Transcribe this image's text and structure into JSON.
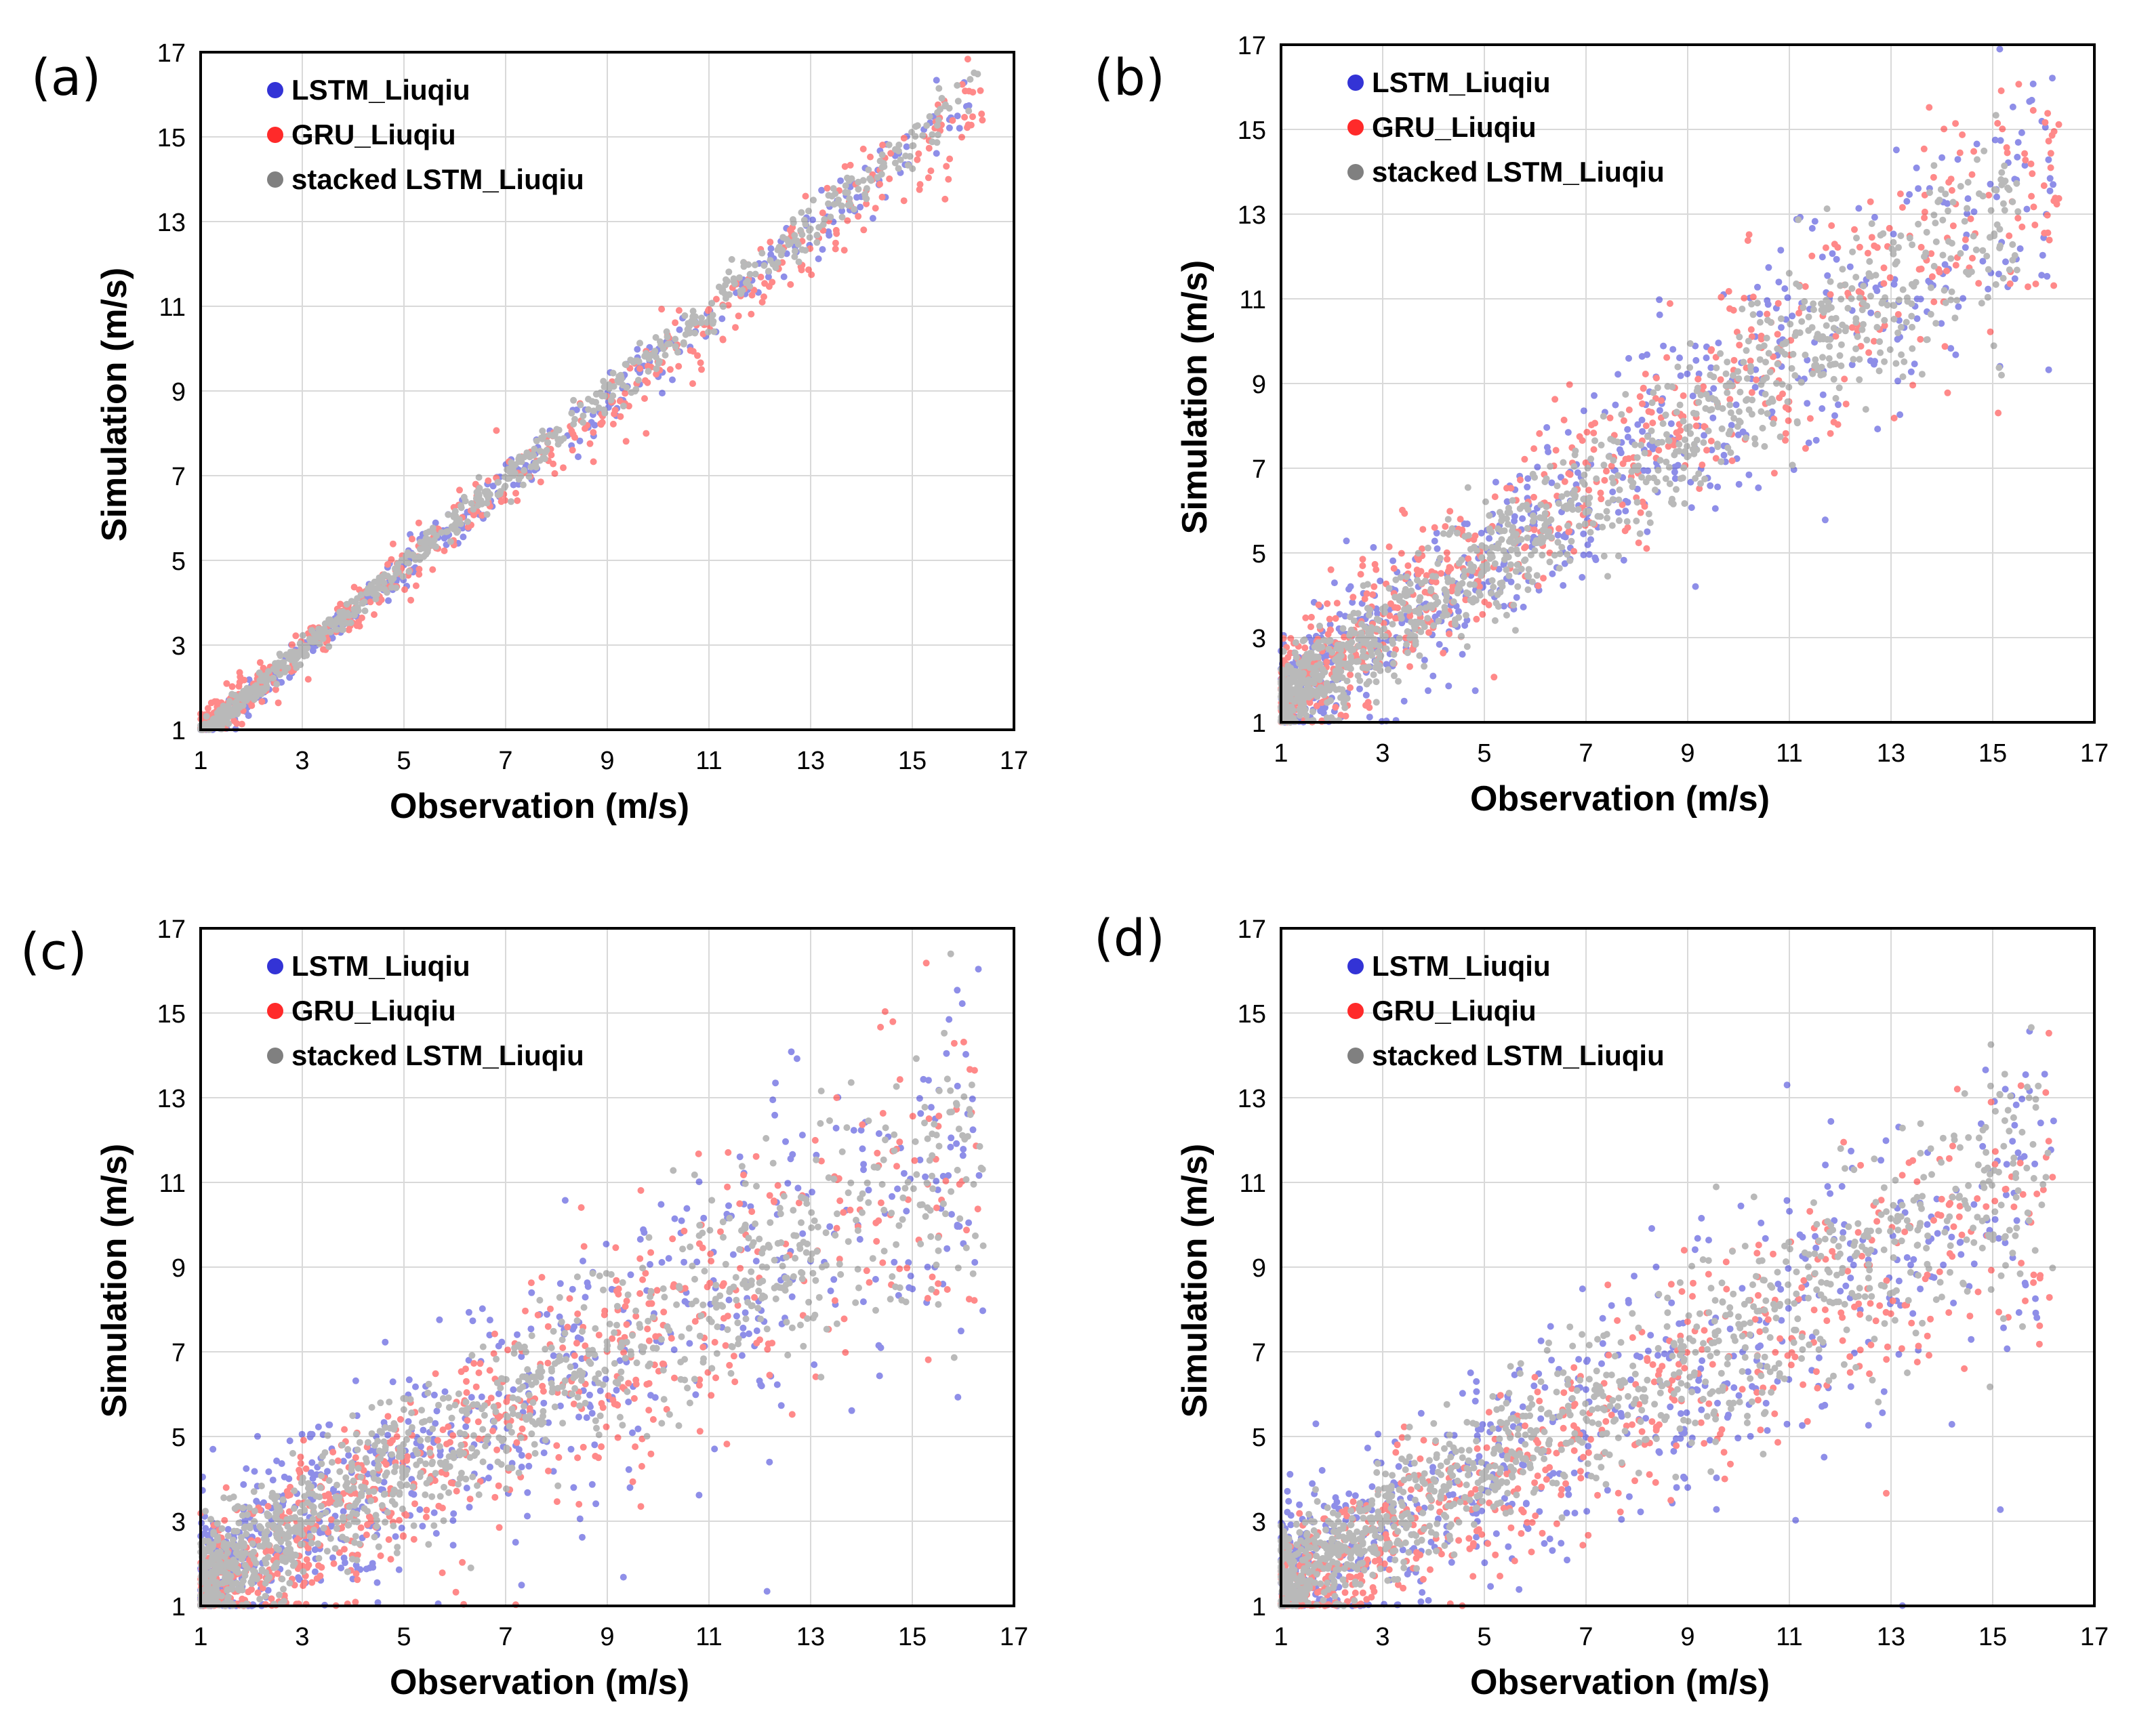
{
  "figure": {
    "colors": {
      "lstm": "#3333d6",
      "gru": "#ff2a2a",
      "stacked": "#808080",
      "grid": "#d9d9d9"
    }
  },
  "chart_data": [
    {
      "panel": "(a)",
      "type": "scatter",
      "xlabel": "Observation (m/s)",
      "ylabel": "Simulation (m/s)",
      "xlim": [
        1,
        17
      ],
      "ylim": [
        1,
        17
      ],
      "xticks": [
        "1",
        "3",
        "5",
        "7",
        "9",
        "11",
        "13",
        "15",
        "17"
      ],
      "yticks": [
        "1",
        "3",
        "5",
        "7",
        "9",
        "11",
        "13",
        "15",
        "17"
      ],
      "legend_position": "top-left",
      "series": [
        {
          "name": "LSTM_Liuqiu",
          "color": "#3333d6",
          "slope": 1.0,
          "intercept": -0.2,
          "spread": 0.22,
          "n": 380,
          "xmax": 16.2
        },
        {
          "name": "GRU_Liuqiu",
          "color": "#ff2a2a",
          "slope": 0.97,
          "intercept": -0.05,
          "spread": 0.35,
          "n": 460,
          "xmax": 16.4
        },
        {
          "name": "stacked LSTM_Liuqiu",
          "color": "#808080",
          "slope": 1.0,
          "intercept": -0.1,
          "spread": 0.18,
          "n": 700,
          "xmax": 16.4
        }
      ]
    },
    {
      "panel": "(b)",
      "type": "scatter",
      "xlabel": "Observation (m/s)",
      "ylabel": "Simulation (m/s)",
      "xlim": [
        1,
        17
      ],
      "ylim": [
        1,
        17
      ],
      "xticks": [
        "1",
        "3",
        "5",
        "7",
        "9",
        "11",
        "13",
        "15",
        "17"
      ],
      "yticks": [
        "1",
        "3",
        "5",
        "7",
        "9",
        "11",
        "13",
        "15",
        "17"
      ],
      "legend_position": "top-left",
      "series": [
        {
          "name": "LSTM_Liuqiu",
          "color": "#3333d6",
          "slope": 0.82,
          "intercept": 0.45,
          "spread": 1.0,
          "n": 650,
          "xmax": 16.2
        },
        {
          "name": "GRU_Liuqiu",
          "color": "#ff2a2a",
          "slope": 0.85,
          "intercept": 0.55,
          "spread": 0.9,
          "n": 650,
          "xmax": 16.4
        },
        {
          "name": "stacked LSTM_Liuqiu",
          "color": "#808080",
          "slope": 0.8,
          "intercept": 0.5,
          "spread": 0.7,
          "n": 1100,
          "xmax": 15.5
        }
      ]
    },
    {
      "panel": "(c)",
      "type": "scatter",
      "xlabel": "Observation (m/s)",
      "ylabel": "Simulation (m/s)",
      "xlim": [
        1,
        17
      ],
      "ylim": [
        1,
        17
      ],
      "xticks": [
        "1",
        "3",
        "5",
        "7",
        "9",
        "11",
        "13",
        "15",
        "17"
      ],
      "yticks": [
        "1",
        "3",
        "5",
        "7",
        "9",
        "11",
        "13",
        "15",
        "17"
      ],
      "legend_position": "top-left",
      "series": [
        {
          "name": "LSTM_Liuqiu",
          "color": "#3333d6",
          "slope": 0.66,
          "intercept": 0.6,
          "spread": 1.3,
          "n": 700,
          "xmax": 16.4
        },
        {
          "name": "GRU_Liuqiu",
          "color": "#ff2a2a",
          "slope": 0.68,
          "intercept": 0.2,
          "spread": 1.1,
          "n": 700,
          "xmax": 16.4
        },
        {
          "name": "stacked LSTM_Liuqiu",
          "color": "#808080",
          "slope": 0.68,
          "intercept": 0.5,
          "spread": 0.85,
          "n": 1100,
          "xmax": 16.4
        }
      ]
    },
    {
      "panel": "(d)",
      "type": "scatter",
      "xlabel": "Observation (m/s)",
      "ylabel": "Simulation (m/s)",
      "xlim": [
        1,
        17
      ],
      "ylim": [
        1,
        17
      ],
      "xticks": [
        "1",
        "3",
        "5",
        "7",
        "9",
        "11",
        "13",
        "15",
        "17"
      ],
      "yticks": [
        "1",
        "3",
        "5",
        "7",
        "9",
        "11",
        "13",
        "15",
        "17"
      ],
      "legend_position": "top-left",
      "series": [
        {
          "name": "LSTM_Liuqiu",
          "color": "#3333d6",
          "slope": 0.62,
          "intercept": 0.6,
          "spread": 1.2,
          "n": 650,
          "xmax": 16.2
        },
        {
          "name": "GRU_Liuqiu",
          "color": "#ff2a2a",
          "slope": 0.64,
          "intercept": 0.2,
          "spread": 1.0,
          "n": 650,
          "xmax": 16.2
        },
        {
          "name": "stacked LSTM_Liuqiu",
          "color": "#808080",
          "slope": 0.66,
          "intercept": 0.6,
          "spread": 0.8,
          "n": 1100,
          "xmax": 16.2
        }
      ]
    }
  ]
}
